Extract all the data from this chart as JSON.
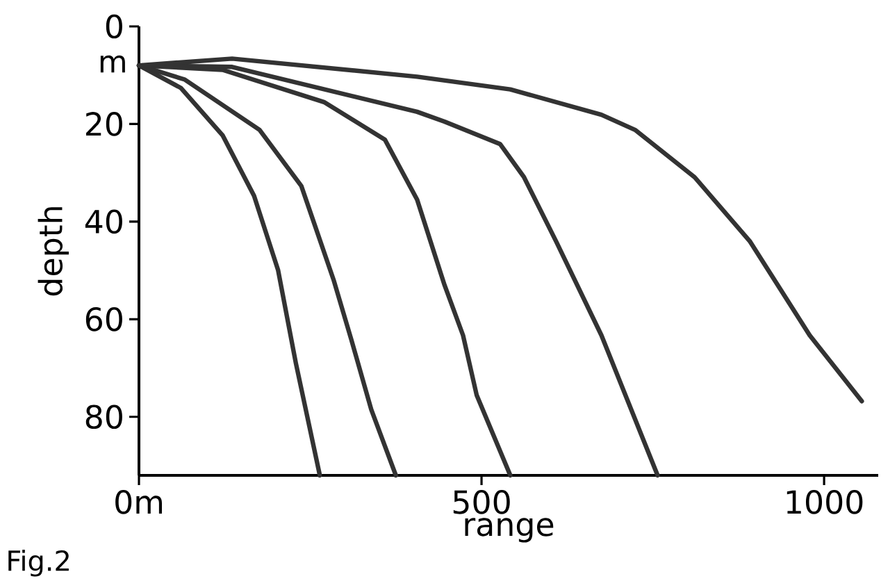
{
  "chart_data": {
    "type": "line",
    "xlabel": "range",
    "ylabel": "depth",
    "xlim": [
      0,
      1079
    ],
    "ylim": [
      92,
      0
    ],
    "xticks": [
      {
        "value": 0,
        "label": "0m"
      },
      500,
      1000
    ],
    "yticks": [
      0,
      20,
      40,
      60,
      80
    ],
    "grid": false,
    "series": [
      {
        "color": "#333333",
        "x": [
          0,
          61,
          122,
          168,
          203,
          229,
          264
        ],
        "values": [
          8,
          12.6,
          22.3,
          34.7,
          49.9,
          69,
          92
        ]
      },
      {
        "color": "#333333",
        "x": [
          0,
          67,
          176,
          237,
          284,
          310,
          339,
          375
        ],
        "values": [
          8,
          10.9,
          21.2,
          32.7,
          51.9,
          64.2,
          78.5,
          92
        ]
      },
      {
        "color": "#333333",
        "x": [
          0,
          122,
          270,
          359,
          406,
          446,
          473,
          493,
          542
        ],
        "values": [
          8,
          8.9,
          15.5,
          23.2,
          35.5,
          53,
          63.3,
          75.6,
          92
        ]
      },
      {
        "color": "#333333",
        "x": [
          0,
          136,
          406,
          446,
          527,
          562,
          609,
          675,
          757
        ],
        "values": [
          8,
          8.3,
          17.5,
          19.5,
          24.1,
          30.9,
          44.1,
          63.3,
          92
        ]
      },
      {
        "color": "#333333",
        "x": [
          0,
          136,
          406,
          542,
          675,
          724,
          811,
          892,
          979,
          1055
        ],
        "values": [
          8,
          6.6,
          10.3,
          12.9,
          18.1,
          21.2,
          30.9,
          44.1,
          63.3,
          76.8
        ]
      }
    ],
    "annotations": [
      "m",
      "Fig.2"
    ]
  }
}
